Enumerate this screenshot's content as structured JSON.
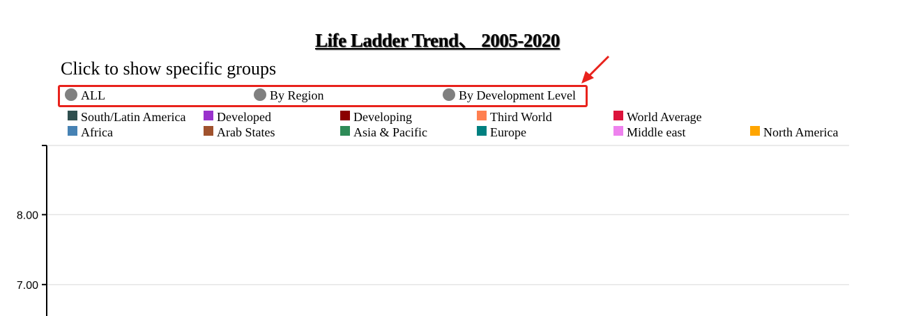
{
  "title": "Life Ladder Trend、 2005-2020",
  "instruction": "Click to show specific groups",
  "filters": [
    {
      "label": "ALL"
    },
    {
      "label": "By Region"
    },
    {
      "label": "By Development Level"
    }
  ],
  "legend": [
    {
      "label": "South/Latin America",
      "color": "#2f4f4f"
    },
    {
      "label": "Developed",
      "color": "#9932cc"
    },
    {
      "label": "Developing",
      "color": "#8b0000"
    },
    {
      "label": "Third World",
      "color": "#ff7f50"
    },
    {
      "label": "World Average",
      "color": "#dc143c"
    },
    {
      "label": "Africa",
      "color": "#4682b4"
    },
    {
      "label": "Arab States",
      "color": "#a0522d"
    },
    {
      "label": "Asia & Pacific",
      "color": "#2e8b57"
    },
    {
      "label": "Europe",
      "color": "#008080"
    },
    {
      "label": "Middle east",
      "color": "#ee82ee"
    },
    {
      "label": "North America",
      "color": "#ffa500"
    }
  ],
  "chart_data": {
    "type": "line",
    "title": "Life Ladder Trend、 2005-2020",
    "xlim": [
      2005,
      2020
    ],
    "y_ticks": [
      "8.00",
      "7.00"
    ],
    "y_tick_values": [
      8,
      7
    ],
    "ylim_visible": [
      6.55,
      8.99
    ],
    "grid": true,
    "series": []
  }
}
